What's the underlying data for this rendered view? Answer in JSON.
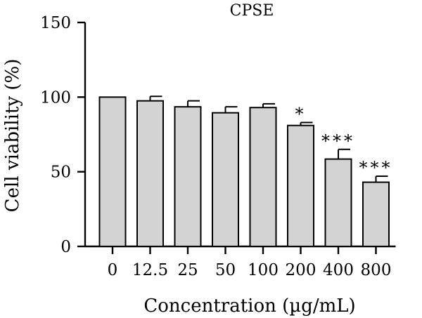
{
  "chart_data": {
    "type": "bar",
    "title": "CPSE",
    "xlabel": "Concentration (µg/mL)",
    "ylabel": "Cell viability (%)",
    "ylim": [
      0,
      150
    ],
    "yticks": [
      0,
      50,
      100,
      150
    ],
    "grid": false,
    "categories": [
      "0",
      "12.5",
      "25",
      "50",
      "100",
      "200",
      "400",
      "800"
    ],
    "values": [
      100,
      97.5,
      93.5,
      89.5,
      93,
      81,
      58.5,
      43
    ],
    "errors": [
      0,
      3,
      4,
      4,
      2.5,
      2,
      6.5,
      4
    ],
    "significance": [
      "",
      "",
      "",
      "",
      "",
      "*",
      "***",
      "***"
    ],
    "colors": {
      "bar_fill": "#d3d3d3",
      "bar_stroke": "#000000"
    }
  }
}
